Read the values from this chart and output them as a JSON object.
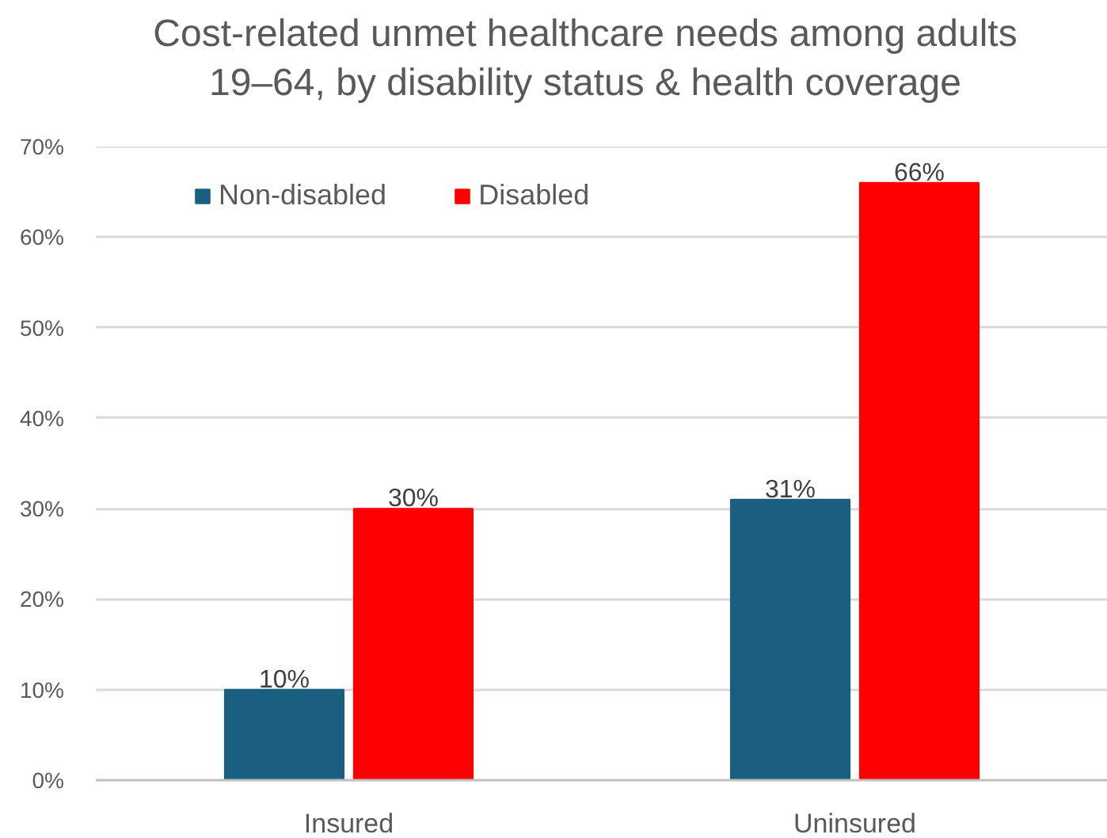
{
  "chart_data": {
    "type": "bar",
    "title": "Cost-related unmet healthcare needs among adults 19–64, by disability status & health coverage",
    "categories": [
      "Insured",
      "Uninsured"
    ],
    "series": [
      {
        "name": "Non-disabled",
        "color": "#185f80",
        "values": [
          10,
          31
        ],
        "value_labels": [
          "10%",
          "31%"
        ]
      },
      {
        "name": "Disabled",
        "color": "#ff0000",
        "values": [
          30,
          66
        ],
        "value_labels": [
          "30%",
          "66%"
        ]
      }
    ],
    "ylim": [
      0,
      70
    ],
    "yticks": [
      {
        "value": 0,
        "label": "0%"
      },
      {
        "value": 10,
        "label": "10%"
      },
      {
        "value": 20,
        "label": "20%"
      },
      {
        "value": 30,
        "label": "30%"
      },
      {
        "value": 40,
        "label": "40%"
      },
      {
        "value": 50,
        "label": "50%"
      },
      {
        "value": 60,
        "label": "60%"
      },
      {
        "value": 70,
        "label": "70%"
      }
    ],
    "grid": "y",
    "legend": "top left"
  }
}
